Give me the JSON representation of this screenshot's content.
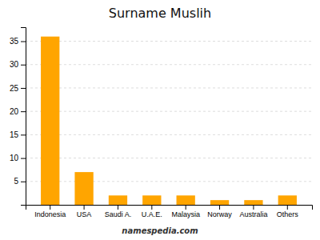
{
  "chart_data": {
    "type": "bar",
    "title": "Surname Muslih",
    "categories": [
      "Indonesia",
      "USA",
      "Saudi A.",
      "U.A.E.",
      "Malaysia",
      "Norway",
      "Australia",
      "Others"
    ],
    "values": [
      36,
      7,
      2,
      2,
      2,
      1,
      1,
      2
    ],
    "color": "#FFA500",
    "ylim": [
      0,
      38
    ],
    "yticks": [
      5,
      10,
      15,
      20,
      25,
      30,
      35
    ],
    "grid": true,
    "annotations": [
      "namespedia.com"
    ]
  }
}
